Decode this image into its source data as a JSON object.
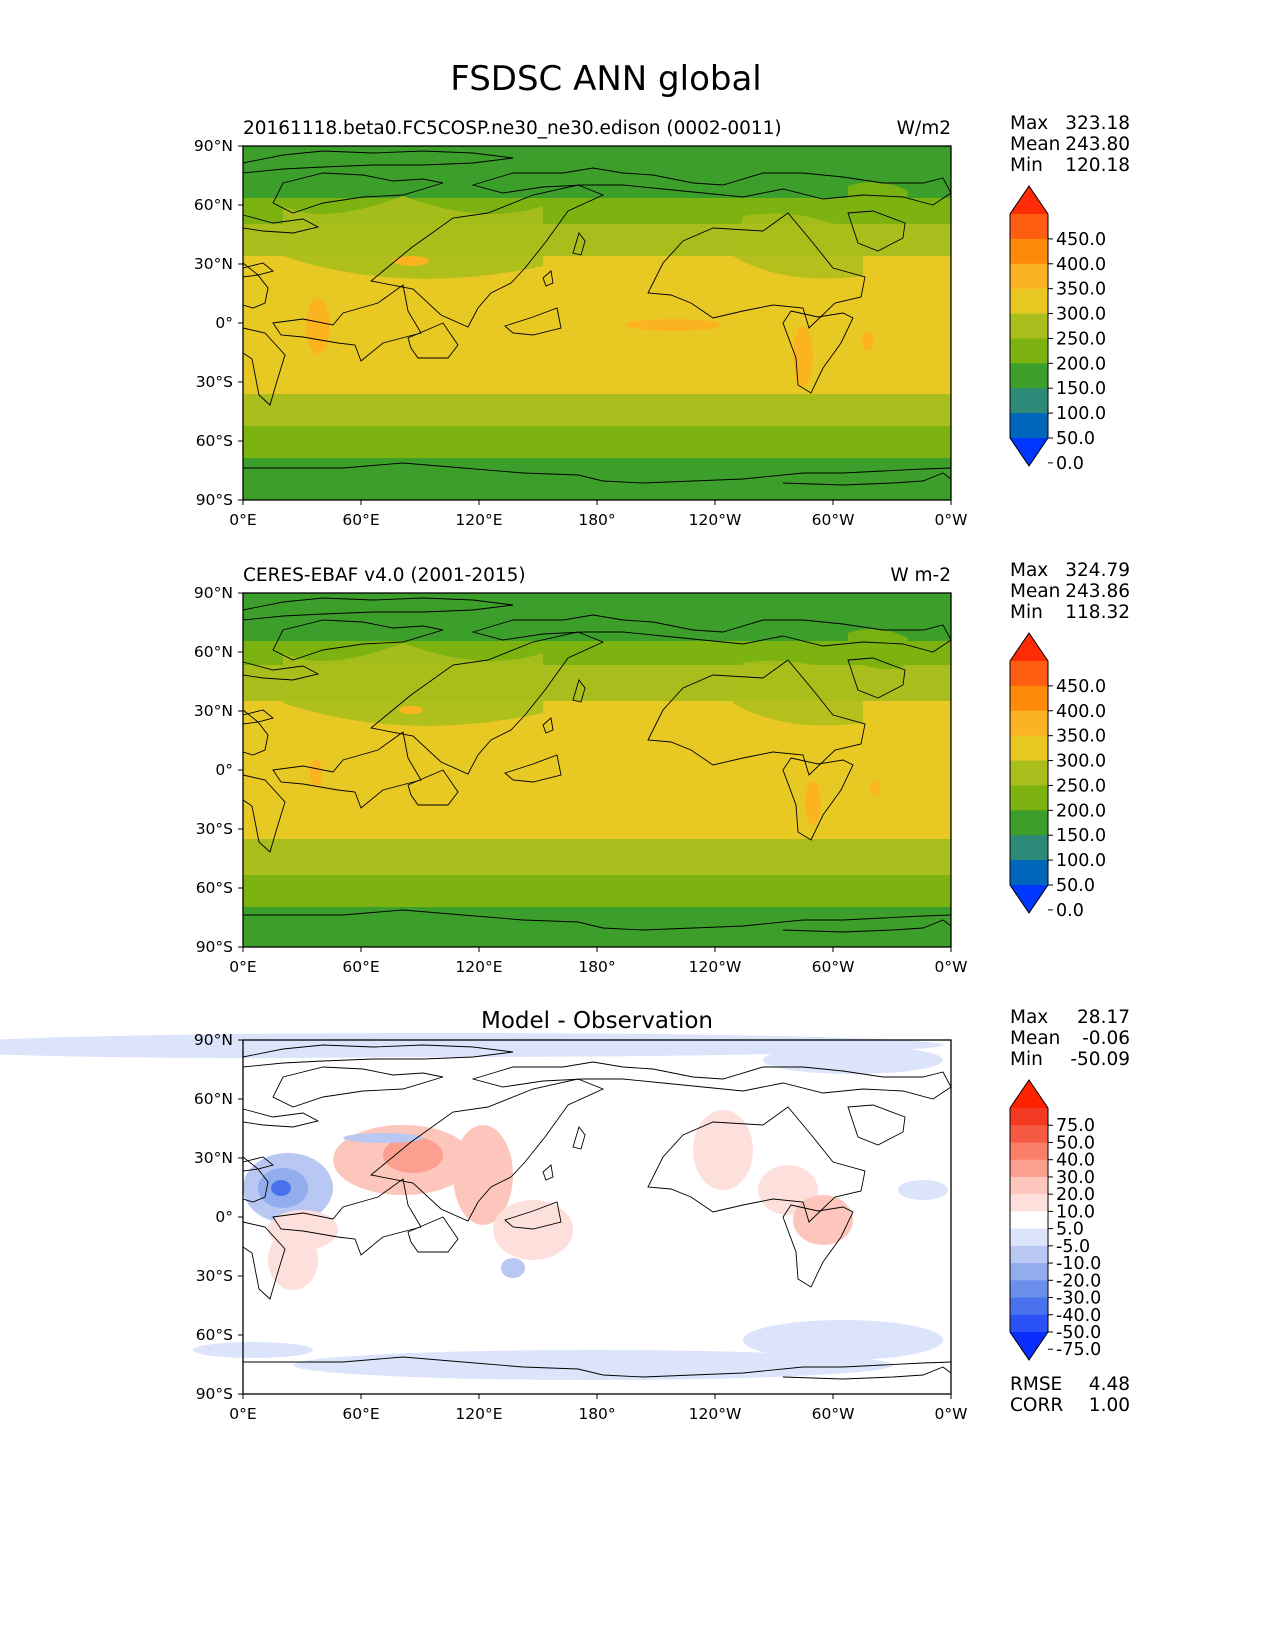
{
  "suptitle": "FSDSC ANN global",
  "panels": [
    {
      "left_title": "20161118.beta0.FC5COSP.ne30_ne30.edison (0002-0011)",
      "center_title": "",
      "right_title": "W/m2",
      "stats": [
        {
          "label": "Max",
          "value": "323.18"
        },
        {
          "label": "Mean",
          "value": "243.80"
        },
        {
          "label": "Min",
          "value": "120.18"
        }
      ],
      "colorbar_labels": [
        "450.0",
        "400.0",
        "350.0",
        "300.0",
        "250.0",
        "200.0",
        "150.0",
        "100.0",
        "50.0",
        "0.0"
      ],
      "extra_stats": []
    },
    {
      "left_title": "CERES-EBAF v4.0 (2001-2015)",
      "center_title": "",
      "right_title": "W m-2",
      "stats": [
        {
          "label": "Max",
          "value": "324.79"
        },
        {
          "label": "Mean",
          "value": "243.86"
        },
        {
          "label": "Min",
          "value": "118.32"
        }
      ],
      "colorbar_labels": [
        "450.0",
        "400.0",
        "350.0",
        "300.0",
        "250.0",
        "200.0",
        "150.0",
        "100.0",
        "50.0",
        "0.0"
      ],
      "extra_stats": []
    },
    {
      "left_title": "",
      "center_title": "Model - Observation",
      "right_title": "",
      "stats": [
        {
          "label": "Max",
          "value": "28.17"
        },
        {
          "label": "Mean",
          "value": "-0.06"
        },
        {
          "label": "Min",
          "value": "-50.09"
        }
      ],
      "colorbar_labels": [
        "75.0",
        "50.0",
        "40.0",
        "30.0",
        "20.0",
        "10.0",
        "5.0",
        "-5.0",
        "-10.0",
        "-20.0",
        "-30.0",
        "-40.0",
        "-50.0",
        "-75.0"
      ],
      "extra_stats": [
        {
          "label": "RMSE",
          "value": "4.48"
        },
        {
          "label": "CORR",
          "value": "1.00"
        }
      ]
    }
  ],
  "axes": {
    "lat_ticks": [
      "90°N",
      "60°N",
      "30°N",
      "0°",
      "30°S",
      "60°S",
      "90°S"
    ],
    "lon_ticks": [
      "0°E",
      "60°E",
      "120°E",
      "180°",
      "120°W",
      "60°W",
      "0°W"
    ]
  },
  "colors": {
    "abs_cmap": [
      "#0037ff",
      "#0066bb",
      "#2e8a78",
      "#3c9e2b",
      "#7db310",
      "#a9be1c",
      "#e8c924",
      "#fcb321",
      "#ff8a0a",
      "#ff5e12",
      "#ff2a06"
    ],
    "diff_cmap": [
      "#0a2dfc",
      "#2b52f5",
      "#4a72ee",
      "#6b8fea",
      "#93acee",
      "#b9c8f2",
      "#dbe4fa",
      "#ffffff",
      "#fde0dc",
      "#fcc6bd",
      "#fb9f8e",
      "#fa7e69",
      "#f75a42",
      "#f23b22",
      "#ff2200"
    ],
    "coast": "#000000"
  }
}
